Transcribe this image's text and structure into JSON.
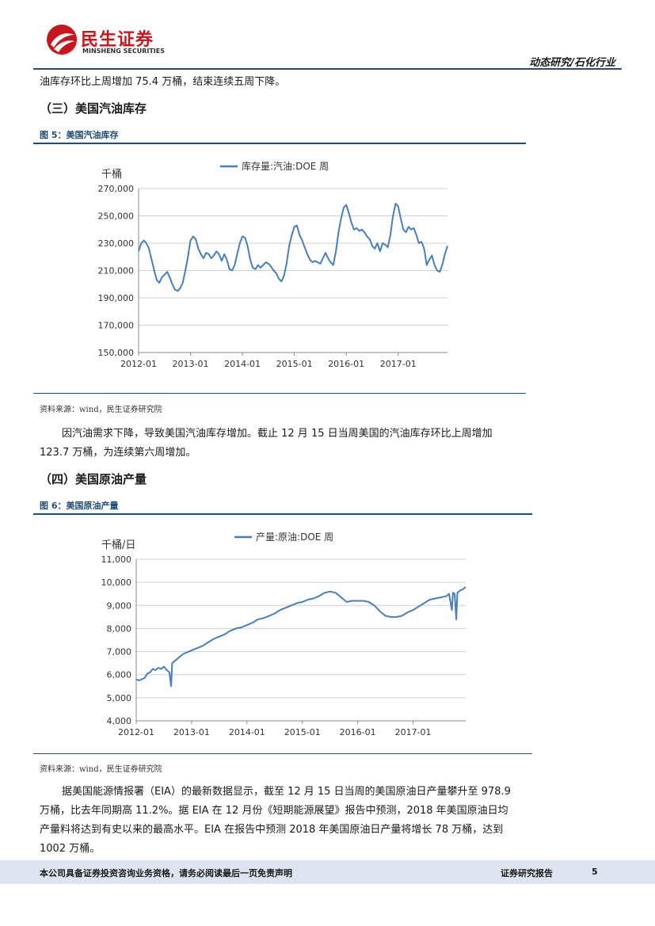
{
  "header": {
    "logo_cn": "民生证券",
    "logo_en": "MINSHENG SECURITIES",
    "category": "动态研究/石化行业"
  },
  "text": {
    "para_top": "油库存环比上周增加 75.4 万桶，结束连续五周下降。",
    "section3_title": "（三）美国汽油库存",
    "fig5_caption": "图 5：美国汽油库存",
    "fig5_source": "资料来源：wind，民生证券研究院",
    "para_gasoline": "因汽油需求下降，导致美国汽油库存增加。截止 12 月 15 日当周美国的汽油库存环比上周增加 123.7 万桶，为连续第六周增加。",
    "section4_title": "（四）美国原油产量",
    "fig6_caption": "图 6：美国原油产量",
    "fig6_source": "资料来源：wind，民生证券研究院",
    "para_production": "据美国能源情报署（EIA）的最新数据显示，截至 12 月 15 日当周的美国原油日产量攀升至 978.9 万桶，比去年同期高 11.2%。据 EIA 在 12 月份《短期能源展望》报告中预测，2018 年美国原油日均产量料将达到有史以来的最高水平。EIA 在报告中预测 2018 年美国原油日产量将增长 78 万桶，达到 1002 万桶。"
  },
  "footer": {
    "disclaimer": "本公司具备证券投资咨询业务资格，请务必阅读最后一页免责声明",
    "report_type": "证券研究报告",
    "page_number": "5"
  },
  "colors": {
    "accent": "#1f4e79",
    "series": "#4a7ebb",
    "brand_red": "#c8151b",
    "footer_bg": "#dde4ef"
  },
  "chart_data": [
    {
      "type": "line",
      "title": "",
      "ylabel": "千桶",
      "legend": "库存量:汽油:DOE 周",
      "legend_position": "top",
      "x_ticks": [
        "2012-01",
        "2013-01",
        "2014-01",
        "2015-01",
        "2016-01",
        "2017-01"
      ],
      "x_range": [
        2012.0,
        2017.95
      ],
      "ylim": [
        150000,
        270000
      ],
      "y_ticks": [
        "150,000",
        "170,000",
        "190,000",
        "210,000",
        "230,000",
        "250,000",
        "270,000"
      ],
      "y_tick_values": [
        150000,
        170000,
        190000,
        210000,
        230000,
        250000,
        270000
      ],
      "grid": true,
      "series": [
        {
          "name": "库存量:汽油:DOE 周",
          "x": [
            2012.0,
            2012.05,
            2012.1,
            2012.15,
            2012.2,
            2012.25,
            2012.3,
            2012.35,
            2012.4,
            2012.45,
            2012.5,
            2012.55,
            2012.6,
            2012.65,
            2012.7,
            2012.75,
            2012.8,
            2012.85,
            2012.9,
            2012.95,
            2013.0,
            2013.05,
            2013.1,
            2013.15,
            2013.2,
            2013.25,
            2013.3,
            2013.35,
            2013.4,
            2013.45,
            2013.5,
            2013.55,
            2013.6,
            2013.65,
            2013.7,
            2013.75,
            2013.8,
            2013.85,
            2013.9,
            2013.95,
            2014.0,
            2014.05,
            2014.1,
            2014.15,
            2014.2,
            2014.25,
            2014.3,
            2014.35,
            2014.4,
            2014.45,
            2014.5,
            2014.55,
            2014.6,
            2014.65,
            2014.7,
            2014.75,
            2014.8,
            2014.85,
            2014.9,
            2014.95,
            2015.0,
            2015.05,
            2015.1,
            2015.15,
            2015.2,
            2015.25,
            2015.3,
            2015.35,
            2015.4,
            2015.45,
            2015.5,
            2015.55,
            2015.6,
            2015.65,
            2015.7,
            2015.75,
            2015.8,
            2015.85,
            2015.9,
            2015.95,
            2016.0,
            2016.05,
            2016.1,
            2016.15,
            2016.2,
            2016.25,
            2016.3,
            2016.35,
            2016.4,
            2016.45,
            2016.5,
            2016.55,
            2016.6,
            2016.65,
            2016.7,
            2016.75,
            2016.8,
            2016.85,
            2016.9,
            2016.95,
            2017.0,
            2017.05,
            2017.1,
            2017.15,
            2017.2,
            2017.25,
            2017.3,
            2017.35,
            2017.4,
            2017.45,
            2017.5,
            2017.55,
            2017.6,
            2017.65,
            2017.7,
            2017.75,
            2017.8,
            2017.85,
            2017.9,
            2017.95
          ],
          "values": [
            224000,
            230000,
            232000,
            230000,
            226000,
            218000,
            210000,
            203000,
            201000,
            205000,
            207000,
            209000,
            205000,
            200000,
            196000,
            195000,
            197000,
            201000,
            210000,
            220000,
            232000,
            235000,
            233000,
            226000,
            222000,
            219000,
            223000,
            222000,
            219000,
            221000,
            224000,
            222000,
            217000,
            222000,
            218000,
            211000,
            210000,
            214000,
            222000,
            230000,
            235000,
            234000,
            228000,
            218000,
            212000,
            211000,
            214000,
            212000,
            214000,
            216000,
            215000,
            213000,
            210000,
            208000,
            204000,
            202000,
            206000,
            215000,
            228000,
            236000,
            242000,
            243000,
            236000,
            232000,
            227000,
            222000,
            218000,
            216000,
            217000,
            216000,
            215000,
            219000,
            223000,
            219000,
            216000,
            214000,
            224000,
            238000,
            248000,
            256000,
            258000,
            252000,
            245000,
            240000,
            241000,
            239000,
            240000,
            238000,
            235000,
            233000,
            228000,
            226000,
            230000,
            224000,
            230000,
            229000,
            227000,
            236000,
            250000,
            259000,
            257000,
            248000,
            240000,
            238000,
            242000,
            240000,
            241000,
            236000,
            230000,
            231000,
            226000,
            214000,
            218000,
            221000,
            214000,
            210000,
            209000,
            214000,
            222000,
            228000
          ]
        }
      ]
    },
    {
      "type": "line",
      "title": "",
      "ylabel": "千桶/日",
      "legend": "产量:原油:DOE 周",
      "legend_position": "top",
      "x_ticks": [
        "2012-01",
        "2013-01",
        "2014-01",
        "2015-01",
        "2016-01",
        "2017-01"
      ],
      "x_range": [
        2012.0,
        2017.95
      ],
      "ylim": [
        4000,
        11000
      ],
      "y_ticks": [
        "4,000",
        "5,000",
        "6,000",
        "7,000",
        "8,000",
        "9,000",
        "10,000",
        "11,000"
      ],
      "y_tick_values": [
        4000,
        5000,
        6000,
        7000,
        8000,
        9000,
        10000,
        11000
      ],
      "grid": true,
      "series": [
        {
          "name": "产量:原油:DOE 周",
          "x": [
            2012.0,
            2012.05,
            2012.1,
            2012.15,
            2012.2,
            2012.25,
            2012.3,
            2012.35,
            2012.4,
            2012.45,
            2012.5,
            2012.55,
            2012.6,
            2012.63,
            2012.65,
            2012.7,
            2012.75,
            2012.8,
            2012.85,
            2012.9,
            2012.95,
            2013.0,
            2013.1,
            2013.2,
            2013.3,
            2013.4,
            2013.5,
            2013.6,
            2013.7,
            2013.8,
            2013.9,
            2014.0,
            2014.1,
            2014.2,
            2014.3,
            2014.4,
            2014.5,
            2014.6,
            2014.7,
            2014.8,
            2014.9,
            2015.0,
            2015.1,
            2015.2,
            2015.3,
            2015.4,
            2015.5,
            2015.6,
            2015.7,
            2015.8,
            2015.9,
            2016.0,
            2016.1,
            2016.2,
            2016.3,
            2016.4,
            2016.5,
            2016.6,
            2016.7,
            2016.8,
            2016.9,
            2017.0,
            2017.1,
            2017.2,
            2017.3,
            2017.4,
            2017.5,
            2017.6,
            2017.65,
            2017.7,
            2017.72,
            2017.75,
            2017.78,
            2017.8,
            2017.85,
            2017.9,
            2017.95
          ],
          "values": [
            5800,
            5750,
            5800,
            5850,
            6050,
            6100,
            6250,
            6200,
            6300,
            6250,
            6350,
            6200,
            6100,
            5500,
            6500,
            6600,
            6700,
            6800,
            6900,
            6950,
            7000,
            7050,
            7150,
            7250,
            7400,
            7550,
            7650,
            7750,
            7900,
            8000,
            8050,
            8150,
            8250,
            8400,
            8450,
            8550,
            8650,
            8800,
            8900,
            9000,
            9100,
            9150,
            9250,
            9300,
            9400,
            9550,
            9600,
            9550,
            9350,
            9150,
            9200,
            9200,
            9200,
            9150,
            9000,
            8750,
            8550,
            8500,
            8500,
            8550,
            8700,
            8800,
            8950,
            9100,
            9250,
            9300,
            9350,
            9400,
            9500,
            8800,
            9550,
            9500,
            8400,
            9550,
            9650,
            9700,
            9800
          ]
        }
      ]
    }
  ]
}
